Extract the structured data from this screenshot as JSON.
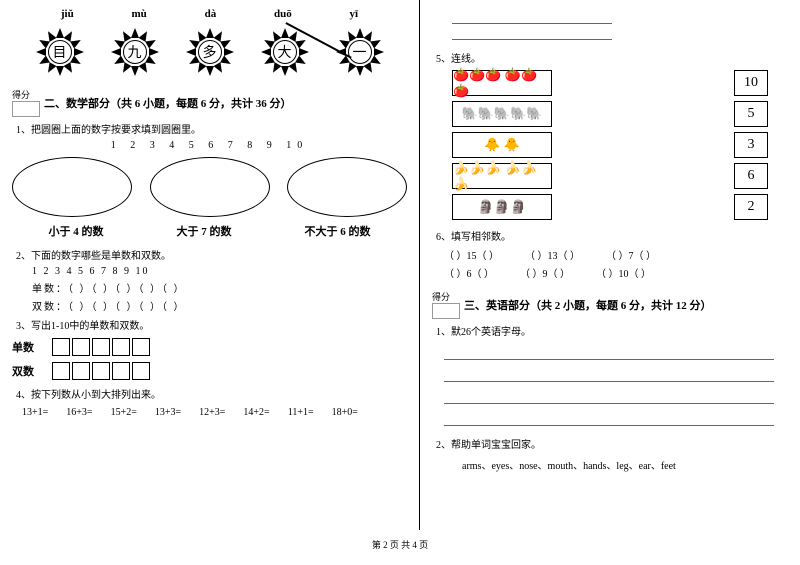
{
  "pinyin": [
    "jiǔ",
    "mù",
    "dà",
    "duō",
    "yī"
  ],
  "chars": [
    "目",
    "九",
    "多",
    "大",
    "一"
  ],
  "section2": {
    "score_label": "得分",
    "title": "二、数学部分（共 6 小题，每题 6 分，共计 36 分）",
    "q1": "1、把圆圈上面的数字按要求填到圆圈里。",
    "numbers": "1  2  3  4  5  6  7  8  9  10",
    "oval_labels": [
      "小于 4 的数",
      "大于 7 的数",
      "不大于 6 的数"
    ],
    "q2": "2、下面的数字哪些是单数和双数。",
    "q2_nums": "1  2  3  4  5  6  7  8  9    10",
    "q2_odd": "单数：（    ）（    ）（    ）（    ）（    ）",
    "q2_even": "双数：（    ）（    ）（    ）（    ）（    ）",
    "q3": "3、写出1-10中的单数和双数。",
    "odd_label": "单数",
    "even_label": "双数",
    "q4": "4、按下列数从小到大排列出来。",
    "eqs": [
      "13+1=",
      "16+3=",
      "15+2=",
      "13+3=",
      "12+3=",
      "14+2=",
      "11+1=",
      "18+0="
    ]
  },
  "right": {
    "q5": "5、连线。",
    "match_nums": [
      "10",
      "5",
      "3",
      "6",
      "2"
    ],
    "obj_rows": [
      "🍅🍅🍅 🍅🍅🍅",
      "🐘🐘🐘🐘🐘",
      "🐥 🐥",
      "🍌🍌🍌 🍌🍌🍌",
      "🗿🗿🗿"
    ],
    "q6": "6、填写相邻数。",
    "neighbors_row1": [
      "（  ）15（  ）",
      "（  ）13（  ）",
      "（  ）7（  ）"
    ],
    "neighbors_row2": [
      "（  ）6（  ）",
      "（  ）9（  ）",
      "（  ）10（  ）"
    ],
    "section3_title": "三、英语部分（共 2 小题，每题 6 分，共计 12 分）",
    "eng_q1": "1、默26个英语字母。",
    "eng_q2": "2、帮助单词宝宝回家。",
    "words": "arms、eyes、nose、mouth、hands、leg、ear、feet"
  },
  "footer": "第 2 页 共 4 页"
}
